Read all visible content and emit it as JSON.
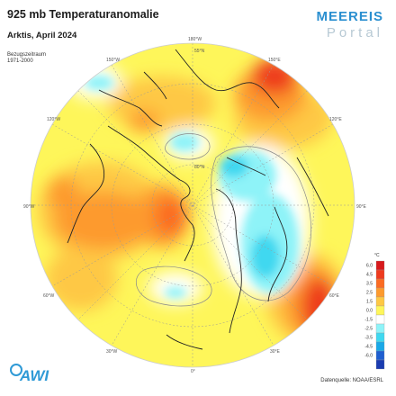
{
  "header": {
    "title": "925 mb Temperaturanomalie",
    "subtitle": "Arktis, April 2024",
    "ref_label": "Bezugszeitraum",
    "ref_period": "1971-2000"
  },
  "branding": {
    "logo_top": "MEEREIS",
    "logo_bottom": "Portal",
    "institute": "AWI"
  },
  "footer": {
    "source": "Datenquelle: NOAA/ESRL"
  },
  "legend": {
    "unit": "°C",
    "ticks": [
      "6.0",
      "4.5",
      "3.5",
      "2.5",
      "1.5",
      "0.0",
      "-1.5",
      "-2.5",
      "-3.5",
      "-4.5",
      "-6.0"
    ],
    "colors": [
      "#d7191c",
      "#ee3b1e",
      "#fb6b22",
      "#fd9a2e",
      "#fec844",
      "#fef65a",
      "#ffffff",
      "#8ef3f8",
      "#3fd8f0",
      "#19a9e8",
      "#1f5fd0",
      "#1b3cb0"
    ]
  },
  "map": {
    "longitude_labels": [
      "180°W",
      "150°E",
      "120°E",
      "90°E",
      "60°E",
      "30°E",
      "0°",
      "30°W",
      "60°W",
      "90°W",
      "120°W",
      "150°W"
    ],
    "latitude_labels": [
      "80°N",
      "55°N"
    ]
  }
}
